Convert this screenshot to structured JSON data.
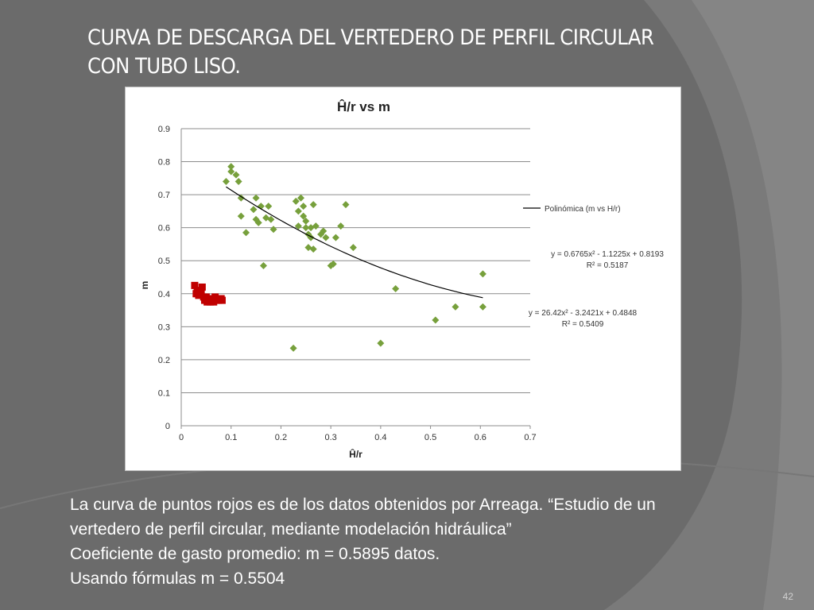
{
  "slide": {
    "title_line1": "CURVA DE DESCARGA DEL VERTEDERO DE PERFIL CIRCULAR",
    "title_line2": "CON TUBO LISO.",
    "body_lines": [
      "La curva de puntos rojos es de los datos obtenidos por Arreaga. “Estudio de un",
      "vertedero de perfil circular, mediante modelación hidráulica”",
      "Coeficiente de gasto promedio: m = 0.5895 datos.",
      "Usando fórmulas m = 0.5504"
    ],
    "page_number": "42"
  },
  "chart_data": {
    "type": "scatter",
    "title": "Ĥ/r vs m",
    "xlabel": "Ĥ/r",
    "ylabel": "m",
    "xlim": [
      0,
      0.7
    ],
    "ylim": [
      0,
      0.9
    ],
    "x_ticks": [
      "0",
      "0.1",
      "0.2",
      "0.3",
      "0.4",
      "0.5",
      "0.6",
      "0.7"
    ],
    "y_ticks": [
      "0",
      "0.1",
      "0.2",
      "0.3",
      "0.4",
      "0.5",
      "0.6",
      "0.7",
      "0.8",
      "0.9"
    ],
    "grid": "horizontal",
    "legend_position": "right",
    "series": [
      {
        "marker": "diamond",
        "color": "#77a03c",
        "points": [
          [
            0.09,
            0.74
          ],
          [
            0.1,
            0.785
          ],
          [
            0.1,
            0.77
          ],
          [
            0.11,
            0.76
          ],
          [
            0.115,
            0.74
          ],
          [
            0.12,
            0.69
          ],
          [
            0.12,
            0.635
          ],
          [
            0.13,
            0.585
          ],
          [
            0.145,
            0.655
          ],
          [
            0.15,
            0.625
          ],
          [
            0.15,
            0.69
          ],
          [
            0.155,
            0.615
          ],
          [
            0.16,
            0.665
          ],
          [
            0.165,
            0.485
          ],
          [
            0.17,
            0.63
          ],
          [
            0.175,
            0.665
          ],
          [
            0.18,
            0.625
          ],
          [
            0.185,
            0.595
          ],
          [
            0.225,
            0.235
          ],
          [
            0.23,
            0.68
          ],
          [
            0.235,
            0.65
          ],
          [
            0.235,
            0.605
          ],
          [
            0.24,
            0.69
          ],
          [
            0.245,
            0.665
          ],
          [
            0.245,
            0.635
          ],
          [
            0.25,
            0.62
          ],
          [
            0.25,
            0.6
          ],
          [
            0.255,
            0.58
          ],
          [
            0.255,
            0.54
          ],
          [
            0.26,
            0.57
          ],
          [
            0.26,
            0.6
          ],
          [
            0.265,
            0.67
          ],
          [
            0.265,
            0.535
          ],
          [
            0.27,
            0.605
          ],
          [
            0.28,
            0.58
          ],
          [
            0.285,
            0.59
          ],
          [
            0.29,
            0.57
          ],
          [
            0.3,
            0.485
          ],
          [
            0.305,
            0.49
          ],
          [
            0.31,
            0.57
          ],
          [
            0.32,
            0.605
          ],
          [
            0.33,
            0.67
          ],
          [
            0.345,
            0.54
          ],
          [
            0.4,
            0.25
          ],
          [
            0.43,
            0.415
          ],
          [
            0.51,
            0.32
          ],
          [
            0.55,
            0.36
          ],
          [
            0.605,
            0.46
          ],
          [
            0.605,
            0.36
          ]
        ]
      },
      {
        "marker": "square",
        "color": "#c00000",
        "points": [
          [
            0.027,
            0.425
          ],
          [
            0.03,
            0.4
          ],
          [
            0.032,
            0.41
          ],
          [
            0.035,
            0.395
          ],
          [
            0.04,
            0.4
          ],
          [
            0.042,
            0.42
          ],
          [
            0.045,
            0.39
          ],
          [
            0.047,
            0.38
          ],
          [
            0.05,
            0.39
          ],
          [
            0.052,
            0.375
          ],
          [
            0.055,
            0.385
          ],
          [
            0.058,
            0.375
          ],
          [
            0.06,
            0.38
          ],
          [
            0.065,
            0.375
          ],
          [
            0.068,
            0.39
          ],
          [
            0.07,
            0.38
          ],
          [
            0.075,
            0.38
          ],
          [
            0.08,
            0.385
          ],
          [
            0.082,
            0.38
          ]
        ]
      }
    ],
    "trendline": {
      "legend_label": "Polinómica (m vs H/r)",
      "coefficients": [
        0.6765,
        -1.1225,
        0.8193
      ],
      "x_range": [
        0.09,
        0.605
      ],
      "color": "#000000"
    },
    "annotations": [
      {
        "id": "eq1",
        "lines": [
          "y = 0.6765x² - 1.1225x + 0.8193",
          "R² = 0.5187"
        ]
      },
      {
        "id": "eq2",
        "lines": [
          "y = 26.42x² - 3.2421x + 0.4848",
          "R² = 0.5409"
        ]
      }
    ]
  }
}
